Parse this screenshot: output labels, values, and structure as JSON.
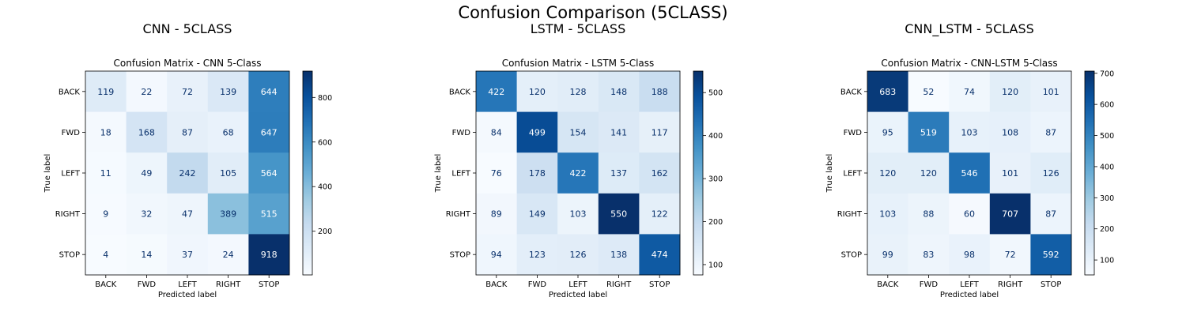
{
  "figure": {
    "title": "Confusion Comparison (5CLASS)"
  },
  "chart_data": [
    {
      "type": "heatmap",
      "panel_title": "CNN - 5CLASS",
      "title": "Confusion Matrix - CNN 5-Class",
      "xlabel": "Predicted label",
      "ylabel": "True label",
      "x_categories": [
        "BACK",
        "FWD",
        "LEFT",
        "RIGHT",
        "STOP"
      ],
      "y_categories": [
        "BACK",
        "FWD",
        "LEFT",
        "RIGHT",
        "STOP"
      ],
      "values": [
        [
          119,
          22,
          72,
          139,
          644
        ],
        [
          18,
          168,
          87,
          68,
          647
        ],
        [
          11,
          49,
          242,
          105,
          564
        ],
        [
          9,
          32,
          47,
          389,
          515
        ],
        [
          4,
          14,
          37,
          24,
          918
        ]
      ],
      "colormap": "Blues",
      "colorbar": {
        "min": 4,
        "max": 918,
        "ticks": [
          200,
          400,
          600,
          800
        ]
      }
    },
    {
      "type": "heatmap",
      "panel_title": "LSTM - 5CLASS",
      "title": "Confusion Matrix - LSTM 5-Class",
      "xlabel": "Predicted label",
      "ylabel": "True label",
      "x_categories": [
        "BACK",
        "FWD",
        "LEFT",
        "RIGHT",
        "STOP"
      ],
      "y_categories": [
        "BACK",
        "FWD",
        "LEFT",
        "RIGHT",
        "STOP"
      ],
      "values": [
        [
          422,
          120,
          128,
          148,
          188
        ],
        [
          84,
          499,
          154,
          141,
          117
        ],
        [
          76,
          178,
          422,
          137,
          162
        ],
        [
          89,
          149,
          103,
          550,
          122
        ],
        [
          94,
          123,
          126,
          138,
          474
        ]
      ],
      "colormap": "Blues",
      "colorbar": {
        "min": 76,
        "max": 550,
        "ticks": [
          100,
          200,
          300,
          400,
          500
        ]
      }
    },
    {
      "type": "heatmap",
      "panel_title": "CNN_LSTM - 5CLASS",
      "title": "Confusion Matrix - CNN-LSTM 5-Class",
      "xlabel": "Predicted label",
      "ylabel": "True label",
      "x_categories": [
        "BACK",
        "FWD",
        "LEFT",
        "RIGHT",
        "STOP"
      ],
      "y_categories": [
        "BACK",
        "FWD",
        "LEFT",
        "RIGHT",
        "STOP"
      ],
      "values": [
        [
          683,
          52,
          74,
          120,
          101
        ],
        [
          95,
          519,
          103,
          108,
          87
        ],
        [
          120,
          120,
          546,
          101,
          126
        ],
        [
          103,
          88,
          60,
          707,
          87
        ],
        [
          99,
          83,
          98,
          72,
          592
        ]
      ],
      "colormap": "Blues",
      "colorbar": {
        "min": 52,
        "max": 707,
        "ticks": [
          100,
          200,
          300,
          400,
          500,
          600,
          700
        ]
      }
    }
  ]
}
